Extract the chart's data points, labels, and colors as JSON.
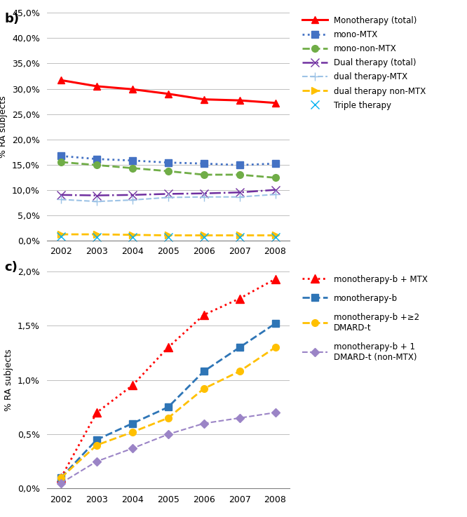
{
  "years": [
    2002,
    2003,
    2004,
    2005,
    2006,
    2007,
    2008
  ],
  "panel_b": {
    "ylabel": "% RA subjects",
    "ylim": [
      0,
      0.45
    ],
    "yticks": [
      0,
      0.05,
      0.1,
      0.15,
      0.2,
      0.25,
      0.3,
      0.35,
      0.4,
      0.45
    ],
    "series": [
      {
        "label": "Monotherapy (total)",
        "values": [
          0.317,
          0.305,
          0.299,
          0.29,
          0.279,
          0.277,
          0.272
        ],
        "color": "#FF0000",
        "linestyle": "-",
        "marker": "^",
        "linewidth": 2.2,
        "markersize": 7,
        "markerfacecolor": "#FF0000"
      },
      {
        "label": "mono-MTX",
        "values": [
          0.167,
          0.161,
          0.158,
          0.154,
          0.152,
          0.149,
          0.152
        ],
        "color": "#4472C4",
        "linestyle": ":",
        "marker": "s",
        "linewidth": 2,
        "markersize": 7,
        "markerfacecolor": "#4472C4"
      },
      {
        "label": "mono-non-MTX",
        "values": [
          0.155,
          0.149,
          0.143,
          0.137,
          0.13,
          0.13,
          0.124
        ],
        "color": "#70AD47",
        "linestyle": "--",
        "marker": "o",
        "linewidth": 2,
        "markersize": 7,
        "markerfacecolor": "#70AD47"
      },
      {
        "label": "Dual therapy (total)",
        "values": [
          0.09,
          0.089,
          0.09,
          0.092,
          0.093,
          0.095,
          0.1
        ],
        "color": "#7030A0",
        "linestyle": "-.",
        "marker": "x",
        "linewidth": 1.8,
        "markersize": 8,
        "markerfacecolor": "#7030A0"
      },
      {
        "label": "dual therapy-MTX",
        "values": [
          0.081,
          0.077,
          0.08,
          0.085,
          0.086,
          0.086,
          0.091
        ],
        "color": "#9DC3E6",
        "linestyle": "--",
        "marker": "+",
        "linewidth": 1.5,
        "markersize": 9,
        "markerfacecolor": "#9DC3E6"
      },
      {
        "label": "dual therapy non-MTX",
        "values": [
          0.012,
          0.012,
          0.011,
          0.01,
          0.01,
          0.01,
          0.01
        ],
        "color": "#FFC000",
        "linestyle": "--",
        "marker": ">",
        "linewidth": 2,
        "markersize": 7,
        "markerfacecolor": "#FFC000"
      },
      {
        "label": "Triple therapy",
        "values": [
          0.008,
          0.007,
          0.007,
          0.006,
          0.006,
          0.006,
          0.006
        ],
        "color": "#00B0F0",
        "linestyle": "none",
        "marker": "x",
        "linewidth": 1.5,
        "markersize": 9,
        "markerfacecolor": "#00B0F0"
      }
    ]
  },
  "panel_c": {
    "ylabel": "% RA subjects",
    "ylim": [
      0,
      0.02
    ],
    "yticks": [
      0,
      0.005,
      0.01,
      0.015,
      0.02
    ],
    "series": [
      {
        "label": "monotherapy-b + MTX",
        "values": [
          0.001,
          0.007,
          0.0095,
          0.013,
          0.016,
          0.0175,
          0.0193
        ],
        "color": "#FF0000",
        "linestyle": ":",
        "marker": "^",
        "linewidth": 2,
        "markersize": 8,
        "markerfacecolor": "#FF0000"
      },
      {
        "label": "monotherapy-b",
        "values": [
          0.001,
          0.0045,
          0.006,
          0.0075,
          0.0108,
          0.013,
          0.0152
        ],
        "color": "#2E75B6",
        "linestyle": "--",
        "marker": "s",
        "linewidth": 2,
        "markersize": 7,
        "markerfacecolor": "#2E75B6"
      },
      {
        "label": "monotherapy-b +≥2\nDMARD-t",
        "values": [
          0.001,
          0.004,
          0.0052,
          0.0065,
          0.0092,
          0.0108,
          0.013
        ],
        "color": "#FFC000",
        "linestyle": "--",
        "marker": "o",
        "linewidth": 2,
        "markersize": 7,
        "markerfacecolor": "#FFC000"
      },
      {
        "label": "monotherapy-b + 1\nDMARD-t (non-MTX)",
        "values": [
          0.0005,
          0.0025,
          0.0037,
          0.005,
          0.006,
          0.0065,
          0.007
        ],
        "color": "#9B84C6",
        "linestyle": "--",
        "marker": "D",
        "linewidth": 1.5,
        "markersize": 6,
        "markerfacecolor": "#9B84C6"
      }
    ]
  }
}
